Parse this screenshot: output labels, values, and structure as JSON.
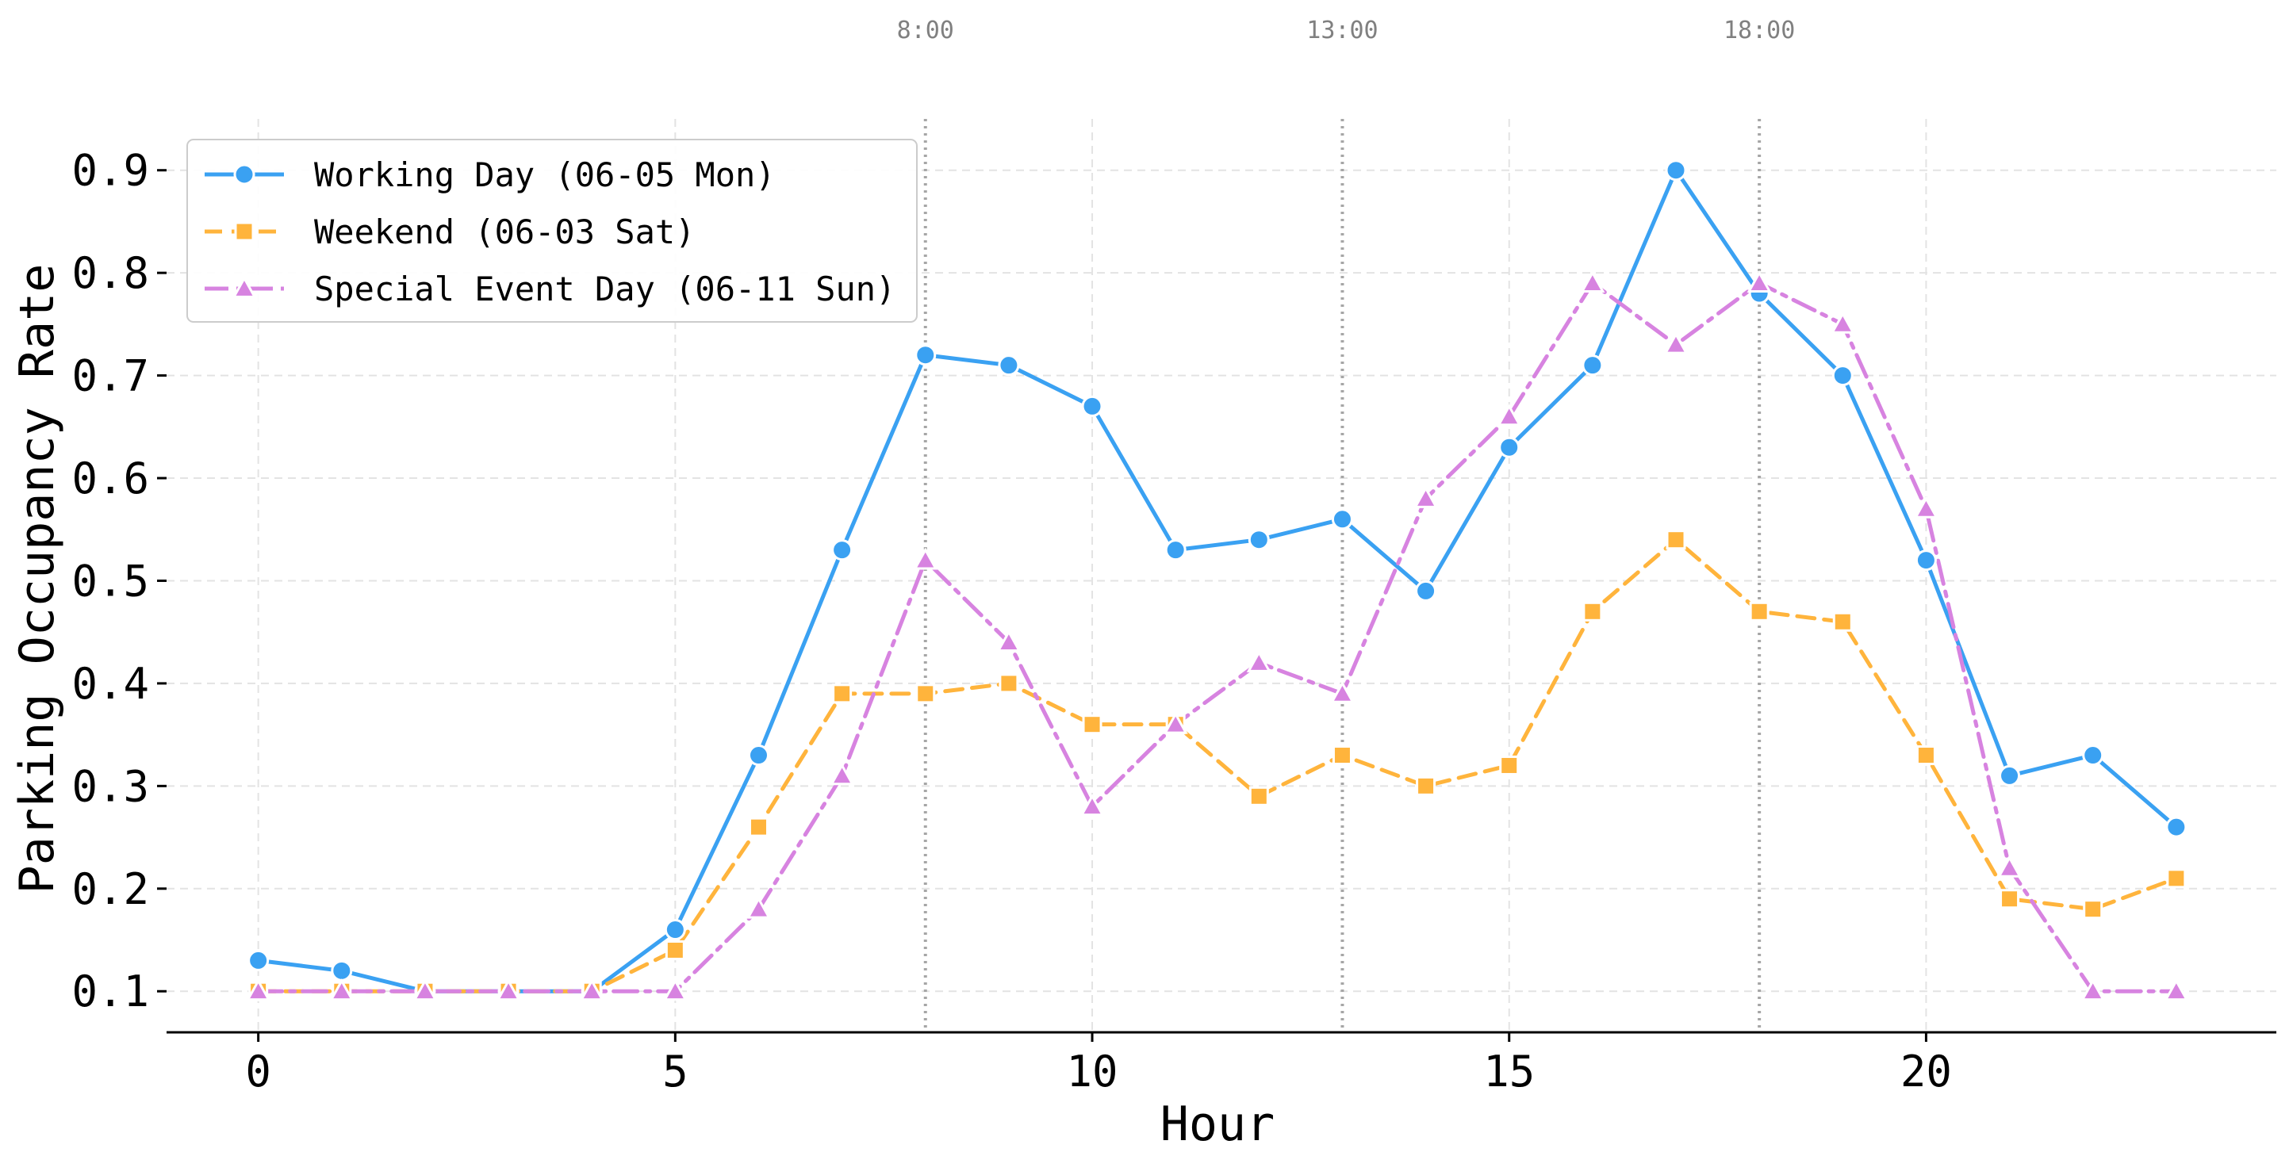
{
  "chart_data": {
    "type": "line",
    "title": "",
    "xlabel": "Hour",
    "ylabel": "Parking Occupancy Rate",
    "xlim": [
      -1.1,
      24.2
    ],
    "ylim": [
      0.06,
      0.95
    ],
    "x": [
      0,
      1,
      2,
      3,
      4,
      5,
      6,
      7,
      8,
      9,
      10,
      11,
      12,
      13,
      14,
      15,
      16,
      17,
      18,
      19,
      20,
      21,
      22,
      23
    ],
    "x_ticks": [
      0,
      5,
      10,
      15,
      20
    ],
    "x_tick_labels": [
      "0",
      "5",
      "10",
      "15",
      "20"
    ],
    "y_ticks": [
      0.1,
      0.2,
      0.3,
      0.4,
      0.5,
      0.6,
      0.7,
      0.8,
      0.9
    ],
    "y_tick_labels": [
      "0.1",
      "0.2",
      "0.3",
      "0.4",
      "0.5",
      "0.6",
      "0.7",
      "0.8",
      "0.9"
    ],
    "grid": true,
    "legend_position": "top-left",
    "reference_lines": [
      {
        "x": 8,
        "label": "8:00"
      },
      {
        "x": 13,
        "label": "13:00"
      },
      {
        "x": 18,
        "label": "18:00"
      }
    ],
    "series": [
      {
        "name": "Working Day (06-05 Mon)",
        "color": "#3AA1F2",
        "line_style": "solid",
        "marker": "circle",
        "values": [
          0.13,
          0.12,
          0.1,
          0.1,
          0.1,
          0.16,
          0.33,
          0.53,
          0.72,
          0.71,
          0.67,
          0.53,
          0.54,
          0.56,
          0.49,
          0.63,
          0.71,
          0.9,
          0.78,
          0.7,
          0.52,
          0.31,
          0.33,
          0.26
        ]
      },
      {
        "name": "Weekend (06-03 Sat)",
        "color": "#FFB43C",
        "line_style": "dashed",
        "marker": "square",
        "values": [
          0.1,
          0.1,
          0.1,
          0.1,
          0.1,
          0.14,
          0.26,
          0.39,
          0.39,
          0.4,
          0.36,
          0.36,
          0.29,
          0.33,
          0.3,
          0.32,
          0.47,
          0.54,
          0.47,
          0.46,
          0.33,
          0.19,
          0.18,
          0.21
        ]
      },
      {
        "name": "Special Event Day (06-11 Sun)",
        "color": "#D783E0",
        "line_style": "dashdot",
        "marker": "triangle",
        "values": [
          0.1,
          0.1,
          0.1,
          0.1,
          0.1,
          0.1,
          0.18,
          0.31,
          0.52,
          0.44,
          0.28,
          0.36,
          0.42,
          0.39,
          0.58,
          0.66,
          0.79,
          0.73,
          0.79,
          0.75,
          0.57,
          0.22,
          0.1,
          0.1
        ]
      }
    ]
  }
}
